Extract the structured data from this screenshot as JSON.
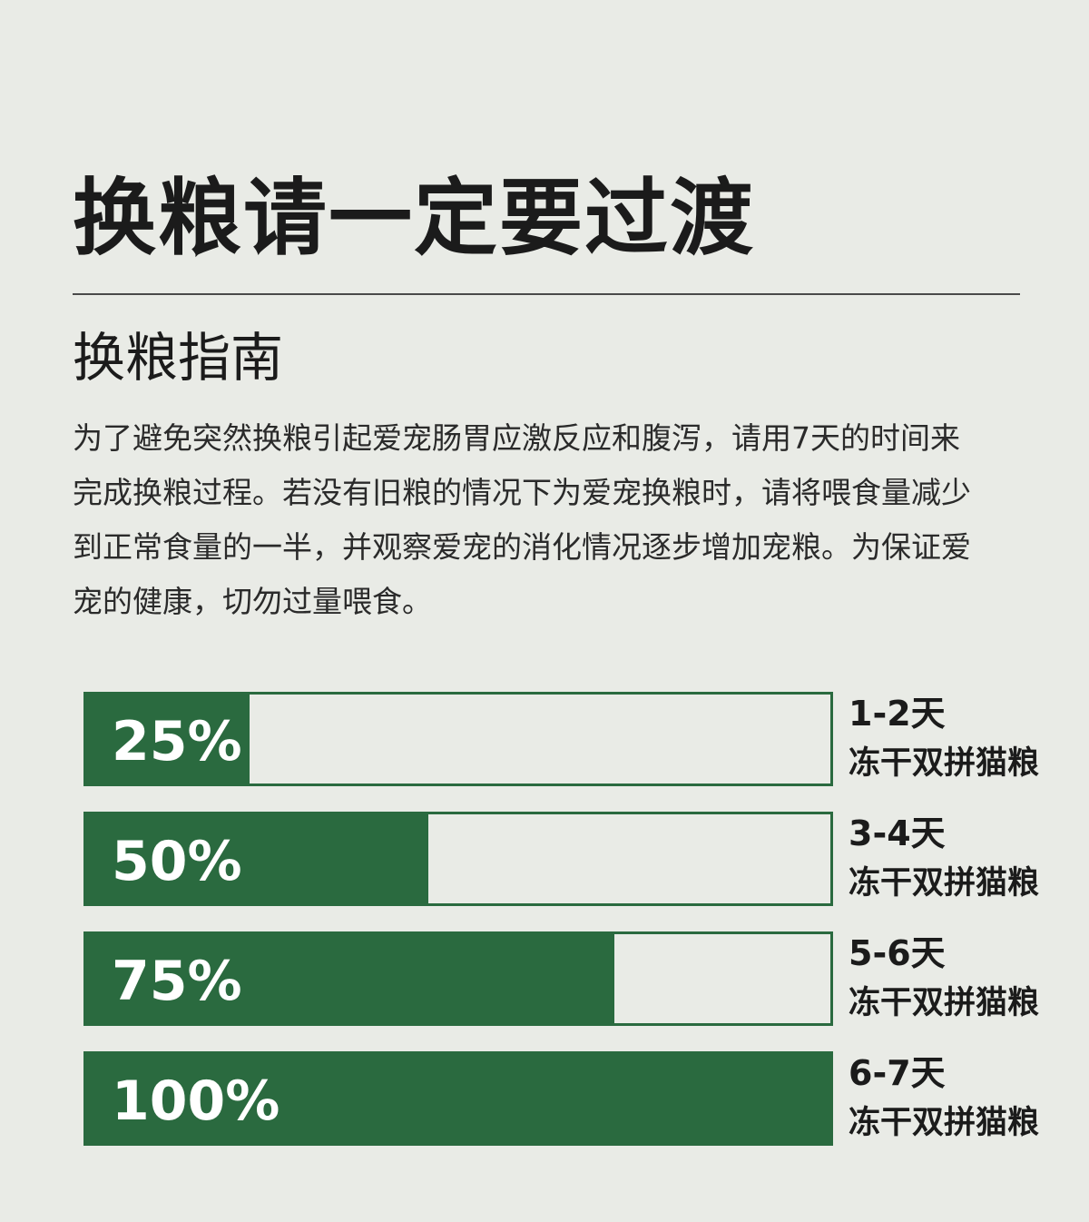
{
  "title": "换粮请一定要过渡",
  "subtitle": "换粮指南",
  "description": "为了避免突然换粮引起爱宠肠胃应激反应和腹泻，请用7天的时间来完成换粮过程。若没有旧粮的情况下为爱宠换粮时，请将喂食量减少到正常食量的一半，并观察爱宠的消化情况逐步增加宠粮。为保证爱宠的健康，切勿过量喂食。",
  "colors": {
    "accent": "#2a6a3f",
    "background": "#e9ebe6",
    "text": "#1b1b1b"
  },
  "stages": [
    {
      "percent_label": "25%",
      "fraction": 0.22,
      "days": "1-2天",
      "food": "冻干双拼猫粮"
    },
    {
      "percent_label": "50%",
      "fraction": 0.46,
      "days": "3-4天",
      "food": "冻干双拼猫粮"
    },
    {
      "percent_label": "75%",
      "fraction": 0.71,
      "days": "5-6天",
      "food": "冻干双拼猫粮"
    },
    {
      "percent_label": "100%",
      "fraction": 1.0,
      "days": "6-7天",
      "food": "冻干双拼猫粮"
    }
  ]
}
